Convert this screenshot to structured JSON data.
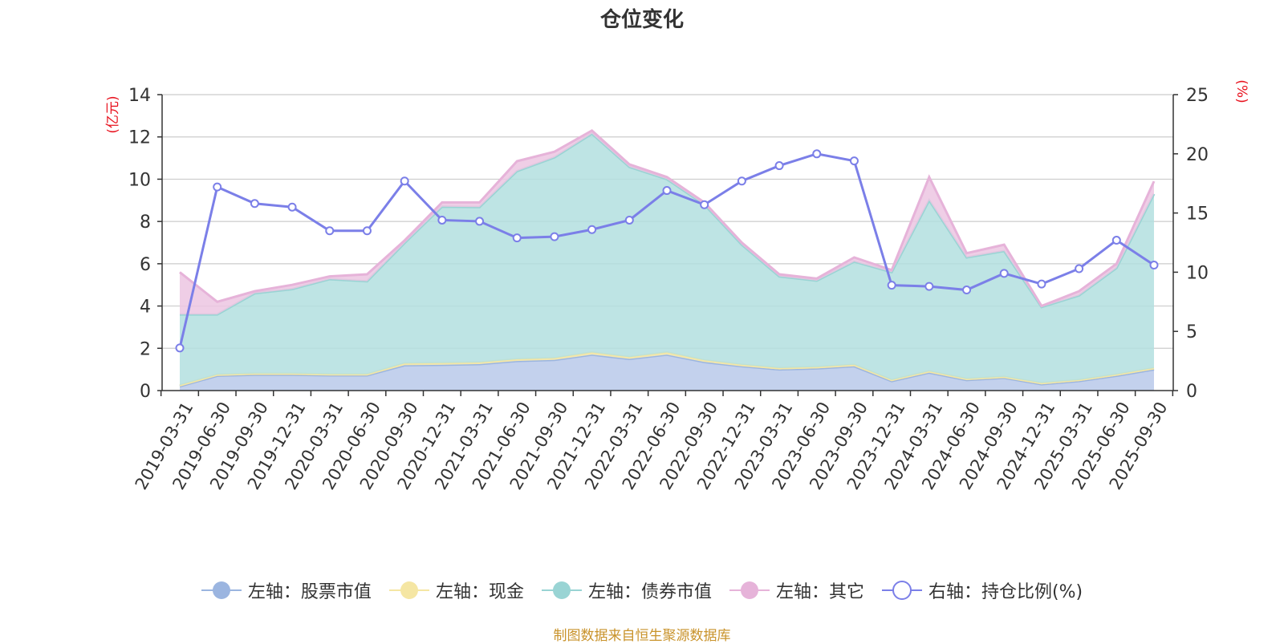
{
  "chart_data": {
    "type": "area",
    "title": "仓位变化",
    "ylabel_left": "(亿元)",
    "ylabel_right": "(%)",
    "ylim_left": [
      0,
      14
    ],
    "ylim_right": [
      0,
      25
    ],
    "yticks_left": [
      0,
      2,
      4,
      6,
      8,
      10,
      12,
      14
    ],
    "yticks_right": [
      0,
      5,
      10,
      15,
      20,
      25
    ],
    "grid": true,
    "legend_position": "bottom",
    "categories": [
      "2019-03-31",
      "2019-06-30",
      "2019-09-30",
      "2019-12-31",
      "2020-03-31",
      "2020-06-30",
      "2020-09-30",
      "2020-12-31",
      "2021-03-31",
      "2021-06-30",
      "2021-09-30",
      "2021-12-31",
      "2022-03-31",
      "2022-06-30",
      "2022-09-30",
      "2022-12-31",
      "2023-03-31",
      "2023-06-30",
      "2023-09-30",
      "2023-12-31",
      "2024-03-31",
      "2024-06-30",
      "2024-09-30",
      "2024-12-31",
      "2025-03-31",
      "2025-06-30",
      "2025-09-30"
    ],
    "series": [
      {
        "name": "左轴：股票市值",
        "axis": "left",
        "kind": "stacked-area",
        "color": "#9bb5e0",
        "fill": "#b8c9ea",
        "values": [
          0.2,
          0.7,
          0.75,
          0.75,
          0.72,
          0.72,
          1.2,
          1.22,
          1.25,
          1.4,
          1.45,
          1.7,
          1.5,
          1.7,
          1.35,
          1.15,
          1.0,
          1.05,
          1.15,
          0.45,
          0.85,
          0.5,
          0.6,
          0.3,
          0.45,
          0.7,
          1.0
        ]
      },
      {
        "name": "左轴：现金",
        "axis": "left",
        "kind": "stacked-area",
        "color": "#f5e6a3",
        "fill": "#f8eeb8",
        "values": [
          0.05,
          0.05,
          0.05,
          0.05,
          0.05,
          0.05,
          0.08,
          0.08,
          0.08,
          0.08,
          0.08,
          0.1,
          0.08,
          0.1,
          0.08,
          0.07,
          0.06,
          0.06,
          0.07,
          0.05,
          0.06,
          0.05,
          0.05,
          0.05,
          0.05,
          0.06,
          0.06
        ]
      },
      {
        "name": "左轴：债券市值",
        "axis": "left",
        "kind": "stacked-area",
        "color": "#99d4d4",
        "fill": "#b3dfdf",
        "values": [
          3.35,
          2.85,
          3.8,
          4.0,
          4.5,
          4.4,
          5.7,
          7.4,
          7.35,
          8.9,
          9.5,
          10.35,
          9.0,
          8.2,
          7.37,
          5.68,
          4.34,
          4.09,
          4.88,
          5.1,
          8.09,
          5.75,
          5.95,
          3.6,
          4.0,
          5.04,
          8.24
        ]
      },
      {
        "name": "左轴：其它",
        "axis": "left",
        "kind": "stacked-area",
        "color": "#e6b3d9",
        "fill": "#ecc5e2",
        "values": [
          2.0,
          0.6,
          0.1,
          0.2,
          0.13,
          0.33,
          0.12,
          0.2,
          0.22,
          0.47,
          0.27,
          0.15,
          0.12,
          0.1,
          0.1,
          0.1,
          0.1,
          0.1,
          0.2,
          0.1,
          1.1,
          0.2,
          0.3,
          0.05,
          0.2,
          0.2,
          0.6
        ]
      },
      {
        "name": "右轴：持仓比例(%)",
        "axis": "right",
        "kind": "line",
        "color": "#7b7fe8",
        "values": [
          3.6,
          17.2,
          15.8,
          15.5,
          13.5,
          13.5,
          17.7,
          14.4,
          14.3,
          12.9,
          13.0,
          13.6,
          14.4,
          16.9,
          15.7,
          17.7,
          19.0,
          20.0,
          19.4,
          8.9,
          8.8,
          8.5,
          9.9,
          9.0,
          10.3,
          12.7,
          10.6
        ]
      }
    ]
  },
  "footer": {
    "source": "制图数据来自恒生聚源数据库",
    "source_color": "#c9932b"
  },
  "colors": {
    "axis_label": "#e8131f",
    "text": "#333333",
    "grid": "#cccccc"
  }
}
